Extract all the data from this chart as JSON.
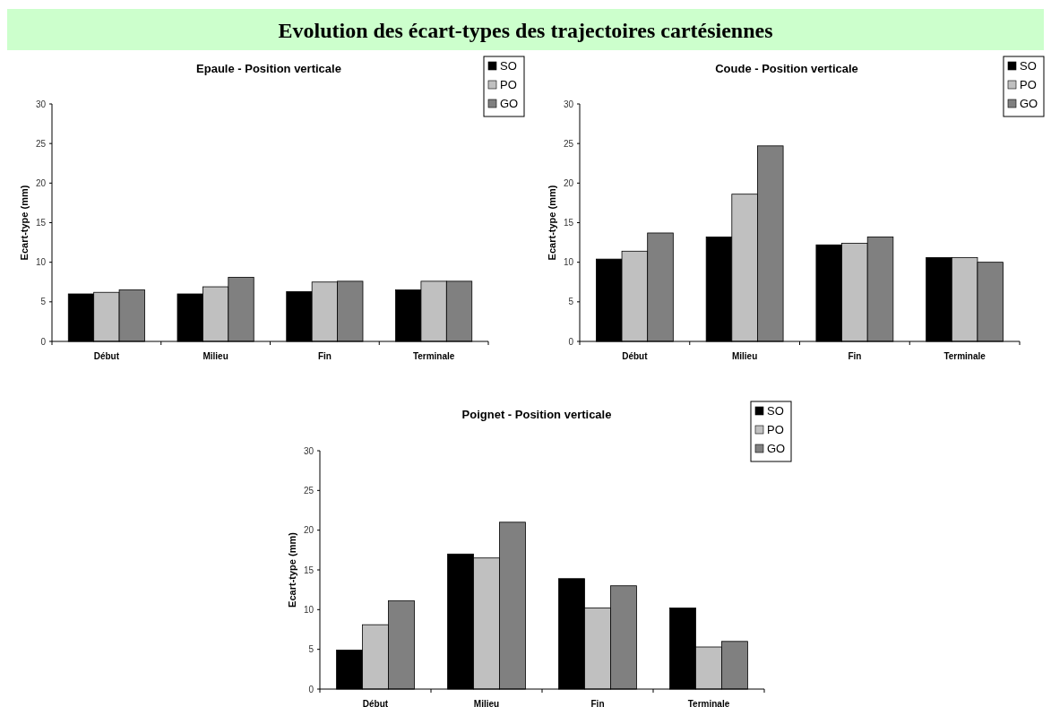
{
  "chart_data": [
    {
      "type": "other",
      "title": "Evolution des écart-types des trajectoires cartésiennes"
    },
    {
      "type": "bar",
      "title": "Epaule - Position verticale",
      "ylabel": "Ecart-type (mm)",
      "categories": [
        "Début",
        "Milieu",
        "Fin",
        "Terminale"
      ],
      "ylim": [
        0,
        30
      ],
      "yticks": [
        0,
        5,
        10,
        15,
        20,
        25,
        30
      ],
      "legend": "top right",
      "series": [
        {
          "name": "SO",
          "color": "#000000",
          "values": [
            6.0,
            6.0,
            6.3,
            6.5
          ]
        },
        {
          "name": "PO",
          "color": "#c0c0c0",
          "values": [
            6.2,
            6.9,
            7.5,
            7.6
          ]
        },
        {
          "name": "GO",
          "color": "#808080",
          "values": [
            6.5,
            8.1,
            7.6,
            7.6
          ]
        }
      ]
    },
    {
      "type": "bar",
      "title": "Coude - Position verticale",
      "ylabel": "Ecart-type (mm)",
      "categories": [
        "Début",
        "Milieu",
        "Fin",
        "Terminale"
      ],
      "ylim": [
        0,
        30
      ],
      "yticks": [
        0,
        5,
        10,
        15,
        20,
        25,
        30
      ],
      "legend": "top right",
      "series": [
        {
          "name": "SO",
          "color": "#000000",
          "values": [
            10.4,
            13.2,
            12.2,
            10.6
          ]
        },
        {
          "name": "PO",
          "color": "#c0c0c0",
          "values": [
            11.4,
            18.6,
            12.4,
            10.6
          ]
        },
        {
          "name": "GO",
          "color": "#808080",
          "values": [
            13.7,
            24.7,
            13.2,
            10.0
          ]
        }
      ]
    },
    {
      "type": "bar",
      "title": "Poignet - Position verticale",
      "ylabel": "Ecart-type (mm)",
      "categories": [
        "Début",
        "Milieu",
        "Fin",
        "Terminale"
      ],
      "ylim": [
        0,
        30
      ],
      "yticks": [
        0,
        5,
        10,
        15,
        20,
        25,
        30
      ],
      "legend": "top right",
      "series": [
        {
          "name": "SO",
          "color": "#000000",
          "values": [
            4.9,
            17.0,
            13.9,
            10.2
          ]
        },
        {
          "name": "PO",
          "color": "#c0c0c0",
          "values": [
            8.1,
            16.5,
            10.2,
            5.3
          ]
        },
        {
          "name": "GO",
          "color": "#808080",
          "values": [
            11.1,
            21.0,
            13.0,
            6.0
          ]
        }
      ]
    }
  ]
}
